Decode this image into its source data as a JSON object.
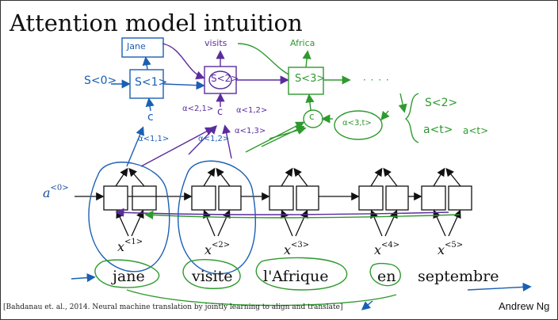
{
  "slide": {
    "title": "Attention model intuition",
    "author": "Andrew Ng",
    "citation": "[Bahdanau et. al., 2014. Neural machine translation by jointly learning to align and translate]"
  },
  "input": {
    "words": [
      "jane",
      "visite",
      "l'Afrique",
      "en",
      "septembre"
    ],
    "x_labels": [
      {
        "base": "x",
        "sup": "<1>"
      },
      {
        "base": "x",
        "sup": "<2>"
      },
      {
        "base": "x",
        "sup": "<3>"
      },
      {
        "base": "x",
        "sup": "<4>"
      },
      {
        "base": "x",
        "sup": "<5>"
      }
    ],
    "initial_activation": {
      "base": "a",
      "sup": "<0>"
    }
  },
  "annotations": {
    "blue": {
      "output_word": "Jane",
      "initial_state": "S<0>",
      "state": "S<1>",
      "context": "c",
      "alpha_1": "α<1,1>",
      "alpha_2": "α<1,2>"
    },
    "purple": {
      "output_word": "visits",
      "state": "S<2>",
      "context": "c",
      "alpha_1": "α<2,1>",
      "alpha_2": "α<1,2>",
      "alpha_3": "α<1,3>"
    },
    "green": {
      "output_word": "Africa",
      "state": "S<3>",
      "context": "c",
      "alpha": "α<3,t>",
      "dots": "· · · ·",
      "brace_top": "S<2>",
      "brace_bottom_1": "a<t>",
      "brace_bottom_2": "a<t>"
    }
  },
  "colors": {
    "blue": "#1a5fb4",
    "purple": "#5b2c9e",
    "green": "#2e9a2e",
    "ink": "#111111"
  }
}
